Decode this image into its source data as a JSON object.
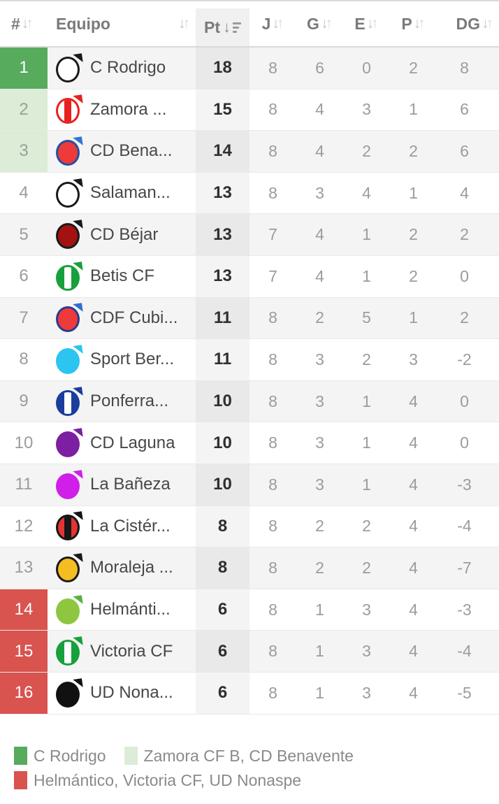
{
  "icons": {
    "sort_down": "↓",
    "sort_up": "↑",
    "sorted_desc_arrow": "↓"
  },
  "zone_colors": {
    "zone1": "#57ab5c",
    "zone2": "#dcecd7",
    "zone3": "#d9534f"
  },
  "table": {
    "columns": [
      {
        "key": "pos",
        "label": "#"
      },
      {
        "key": "team",
        "label": "Equipo"
      },
      {
        "key": "pt",
        "label": "Pt",
        "sorted": "desc"
      },
      {
        "key": "j",
        "label": "J"
      },
      {
        "key": "g",
        "label": "G"
      },
      {
        "key": "e",
        "label": "E"
      },
      {
        "key": "p",
        "label": "P"
      },
      {
        "key": "dg",
        "label": "DG"
      }
    ],
    "rows": [
      {
        "pos": "1",
        "zone": "zone1",
        "team": "C Rodrigo",
        "pt": "18",
        "j": "8",
        "g": "6",
        "e": "0",
        "p": "2",
        "dg": "8",
        "logo": {
          "fill": "#ffffff",
          "border": "#1a1a1a",
          "stripe": null,
          "corner": "#1a1a1a"
        }
      },
      {
        "pos": "2",
        "zone": "zone2",
        "team": "Zamora ...",
        "pt": "15",
        "j": "8",
        "g": "4",
        "e": "3",
        "p": "1",
        "dg": "6",
        "logo": {
          "fill": "#ffffff",
          "border": "#e8201f",
          "stripe": "#e8201f",
          "corner": "#e8201f"
        }
      },
      {
        "pos": "3",
        "zone": "zone2",
        "team": "CD Bena...",
        "pt": "14",
        "j": "8",
        "g": "4",
        "e": "2",
        "p": "2",
        "dg": "6",
        "logo": {
          "fill": "#ee3a3a",
          "border": "#24509e",
          "stripe": null,
          "corner": "#2e77d4"
        }
      },
      {
        "pos": "4",
        "zone": null,
        "team": "Salaman...",
        "pt": "13",
        "j": "8",
        "g": "3",
        "e": "4",
        "p": "1",
        "dg": "4",
        "logo": {
          "fill": "#ffffff",
          "border": "#1a1a1a",
          "stripe": null,
          "corner": "#1a1a1a"
        }
      },
      {
        "pos": "5",
        "zone": null,
        "team": "CD Béjar",
        "pt": "13",
        "j": "7",
        "g": "4",
        "e": "1",
        "p": "2",
        "dg": "2",
        "logo": {
          "fill": "#a31111",
          "border": "#1a1a1a",
          "stripe": null,
          "corner": "#1a1a1a"
        }
      },
      {
        "pos": "6",
        "zone": null,
        "team": "Betis CF",
        "pt": "13",
        "j": "7",
        "g": "4",
        "e": "1",
        "p": "2",
        "dg": "0",
        "logo": {
          "fill": "#17a03c",
          "border": "#17a03c",
          "stripe": "#ffffff",
          "corner": "#17a03c"
        }
      },
      {
        "pos": "7",
        "zone": null,
        "team": "CDF Cubi...",
        "pt": "11",
        "j": "8",
        "g": "2",
        "e": "5",
        "p": "1",
        "dg": "2",
        "logo": {
          "fill": "#ee3a3a",
          "border": "#2a3b8f",
          "stripe": null,
          "corner": "#2d6fd1"
        }
      },
      {
        "pos": "8",
        "zone": null,
        "team": "Sport Ber...",
        "pt": "11",
        "j": "8",
        "g": "3",
        "e": "2",
        "p": "3",
        "dg": "-2",
        "logo": {
          "fill": "#2cc4f0",
          "border": "#2cc4f0",
          "stripe": null,
          "corner": "#2cc4f0"
        }
      },
      {
        "pos": "9",
        "zone": null,
        "team": "Ponferra...",
        "pt": "10",
        "j": "8",
        "g": "3",
        "e": "1",
        "p": "4",
        "dg": "0",
        "logo": {
          "fill": "#1b3d9e",
          "border": "#1b3d9e",
          "stripe": "#ffffff",
          "corner": "#1b3d9e"
        }
      },
      {
        "pos": "10",
        "zone": null,
        "team": "CD Laguna",
        "pt": "10",
        "j": "8",
        "g": "3",
        "e": "1",
        "p": "4",
        "dg": "0",
        "logo": {
          "fill": "#7c1fa0",
          "border": "#7c1fa0",
          "stripe": null,
          "corner": "#7c1fa0"
        }
      },
      {
        "pos": "11",
        "zone": null,
        "team": "La Bañeza",
        "pt": "10",
        "j": "8",
        "g": "3",
        "e": "1",
        "p": "4",
        "dg": "-3",
        "logo": {
          "fill": "#cf1fe8",
          "border": "#cf1fe8",
          "stripe": null,
          "corner": "#cf1fe8"
        }
      },
      {
        "pos": "12",
        "zone": null,
        "team": "La Cistér...",
        "pt": "8",
        "j": "8",
        "g": "2",
        "e": "2",
        "p": "4",
        "dg": "-4",
        "logo": {
          "fill": "#e33434",
          "border": "#151515",
          "stripe": "#151515",
          "corner": "#151515"
        }
      },
      {
        "pos": "13",
        "zone": null,
        "team": "Moraleja ...",
        "pt": "8",
        "j": "8",
        "g": "2",
        "e": "2",
        "p": "4",
        "dg": "-7",
        "logo": {
          "fill": "#f4bd22",
          "border": "#1a1a1a",
          "stripe": null,
          "corner": "#1a1a1a"
        }
      },
      {
        "pos": "14",
        "zone": "zone3",
        "team": "Helmánti...",
        "pt": "6",
        "j": "8",
        "g": "1",
        "e": "3",
        "p": "4",
        "dg": "-3",
        "logo": {
          "fill": "#8ec63f",
          "border": "#8ec63f",
          "stripe": null,
          "corner": "#5cb043"
        }
      },
      {
        "pos": "15",
        "zone": "zone3",
        "team": "Victoria CF",
        "pt": "6",
        "j": "8",
        "g": "1",
        "e": "3",
        "p": "4",
        "dg": "-4",
        "logo": {
          "fill": "#17a03c",
          "border": "#17a03c",
          "stripe": "#ffffff",
          "corner": "#17a03c"
        }
      },
      {
        "pos": "16",
        "zone": "zone3",
        "team": "UD Nona...",
        "pt": "6",
        "j": "8",
        "g": "1",
        "e": "3",
        "p": "4",
        "dg": "-5",
        "logo": {
          "fill": "#111111",
          "border": "#111111",
          "stripe": null,
          "corner": "#111111"
        }
      }
    ]
  },
  "legend": {
    "items": [
      {
        "color": "#57ab5c",
        "label": "C Rodrigo"
      },
      {
        "color": "#dcecd7",
        "label": "Zamora CF B, CD Benavente"
      },
      {
        "color": "#d9534f",
        "label": "Helmántico, Victoria CF, UD Nonaspe"
      }
    ]
  }
}
